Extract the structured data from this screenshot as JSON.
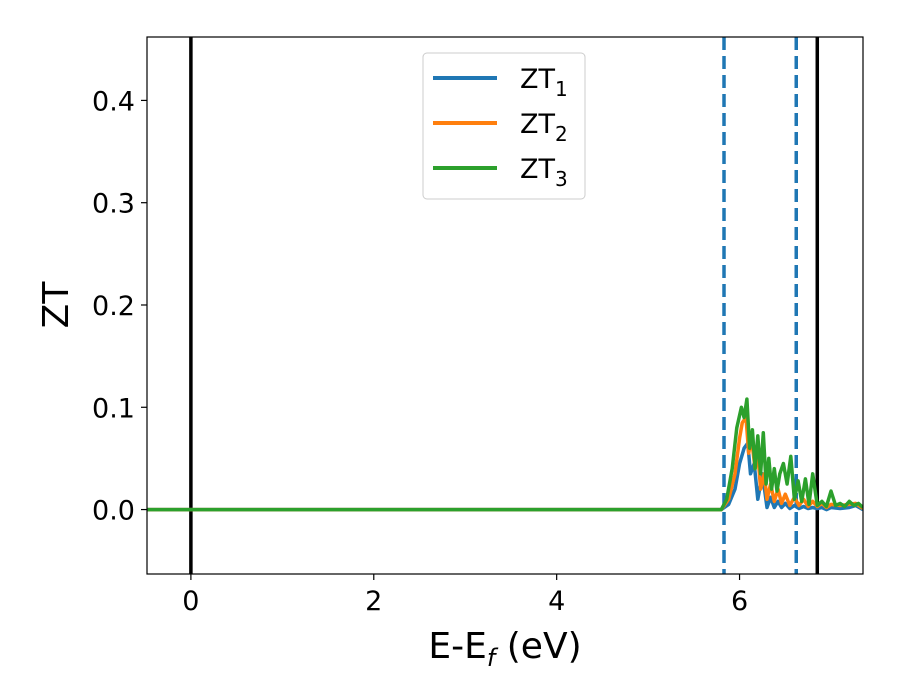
{
  "chart_data": {
    "type": "line",
    "xlabel_main": "E-E",
    "xlabel_sub": "f",
    "xlabel_unit": " (eV)",
    "ylabel": "ZT",
    "xlim": [
      -0.48,
      7.35
    ],
    "ylim": [
      -0.063,
      0.462
    ],
    "x_ticks": [
      0,
      2,
      4,
      6
    ],
    "x_tick_labels": [
      "0",
      "2",
      "4",
      "6"
    ],
    "y_ticks": [
      0.0,
      0.1,
      0.2,
      0.3,
      0.4
    ],
    "y_tick_labels": [
      "0.0",
      "0.1",
      "0.2",
      "0.3",
      "0.4"
    ],
    "grid": false,
    "legend_position": "top-center",
    "reference_lines": [
      {
        "x": 0.0,
        "style": "solid",
        "color": "#000000"
      },
      {
        "x": 5.83,
        "style": "dashed",
        "color": "#1f77b4"
      },
      {
        "x": 6.62,
        "style": "dashed",
        "color": "#1f77b4"
      },
      {
        "x": 6.85,
        "style": "solid",
        "color": "#000000"
      }
    ],
    "series": [
      {
        "name_main": "ZT",
        "name_sub": "1",
        "color": "#1f77b4",
        "x": [
          -0.48,
          5.8,
          5.88,
          5.95,
          6.0,
          6.05,
          6.09,
          6.12,
          6.16,
          6.2,
          6.25,
          6.3,
          6.34,
          6.38,
          6.42,
          6.46,
          6.5,
          6.55,
          6.6,
          6.65,
          6.7,
          6.75,
          6.8,
          6.85,
          6.9,
          6.95,
          7.0,
          7.1,
          7.2,
          7.27,
          7.35
        ],
        "y": [
          0.0,
          0.0,
          0.005,
          0.02,
          0.045,
          0.06,
          0.065,
          0.035,
          0.045,
          0.01,
          0.035,
          0.002,
          0.012,
          0.002,
          0.008,
          0.002,
          0.006,
          0.001,
          0.004,
          0.001,
          0.003,
          0.001,
          0.002,
          0.001,
          0.002,
          0.0,
          0.002,
          0.001,
          0.002,
          0.004,
          0.0
        ]
      },
      {
        "name_main": "ZT",
        "name_sub": "2",
        "color": "#ff7f0e",
        "x": [
          -0.48,
          5.8,
          5.88,
          5.95,
          6.0,
          6.03,
          6.07,
          6.1,
          6.13,
          6.17,
          6.2,
          6.23,
          6.27,
          6.3,
          6.34,
          6.38,
          6.42,
          6.46,
          6.5,
          6.55,
          6.6,
          6.65,
          6.7,
          6.75,
          6.8,
          6.85,
          6.9,
          6.95,
          7.0,
          7.1,
          7.2,
          7.27,
          7.35
        ],
        "y": [
          0.0,
          0.0,
          0.01,
          0.035,
          0.07,
          0.085,
          0.09,
          0.055,
          0.07,
          0.04,
          0.055,
          0.02,
          0.035,
          0.01,
          0.025,
          0.008,
          0.02,
          0.006,
          0.015,
          0.004,
          0.012,
          0.004,
          0.01,
          0.003,
          0.008,
          0.003,
          0.006,
          0.002,
          0.005,
          0.004,
          0.005,
          0.006,
          0.001
        ]
      },
      {
        "name_main": "ZT",
        "name_sub": "3",
        "color": "#2ca02c",
        "x": [
          -0.48,
          5.8,
          5.86,
          5.92,
          5.97,
          6.02,
          6.05,
          6.08,
          6.11,
          6.14,
          6.17,
          6.2,
          6.23,
          6.26,
          6.29,
          6.32,
          6.35,
          6.38,
          6.41,
          6.44,
          6.48,
          6.52,
          6.56,
          6.6,
          6.64,
          6.68,
          6.72,
          6.76,
          6.8,
          6.85,
          6.9,
          6.95,
          7.0,
          7.05,
          7.1,
          7.15,
          7.2,
          7.25,
          7.3,
          7.35
        ],
        "y": [
          0.0,
          0.0,
          0.01,
          0.04,
          0.08,
          0.1,
          0.09,
          0.108,
          0.06,
          0.078,
          0.04,
          0.072,
          0.035,
          0.075,
          0.025,
          0.05,
          0.02,
          0.04,
          0.018,
          0.035,
          0.045,
          0.025,
          0.052,
          0.01,
          0.028,
          0.008,
          0.03,
          0.005,
          0.035,
          0.004,
          0.008,
          0.003,
          0.018,
          0.004,
          0.006,
          0.003,
          0.008,
          0.004,
          0.006,
          0.002
        ]
      }
    ]
  }
}
